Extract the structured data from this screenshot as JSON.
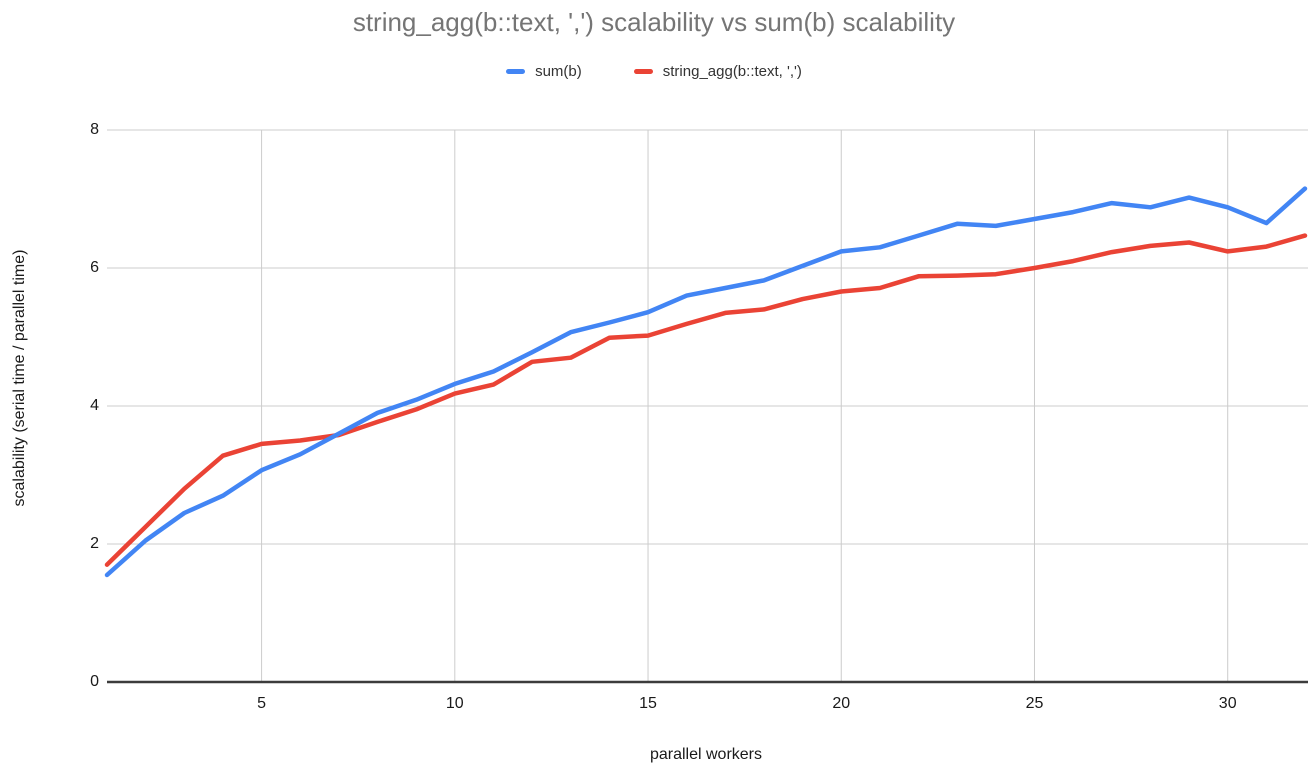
{
  "chart_data": {
    "type": "line",
    "title": "string_agg(b::text, ',') scalability vs sum(b) scalability",
    "xlabel": "parallel workers",
    "ylabel": "scalability (serial time / parallel time)",
    "x": [
      1,
      2,
      3,
      4,
      5,
      6,
      7,
      8,
      9,
      10,
      11,
      12,
      13,
      14,
      15,
      16,
      17,
      18,
      19,
      20,
      21,
      22,
      23,
      24,
      25,
      26,
      27,
      28,
      29,
      30,
      31,
      32
    ],
    "series": [
      {
        "name": "sum(b)",
        "color": "#4285f4",
        "values": [
          1.55,
          2.05,
          2.45,
          2.7,
          3.07,
          3.3,
          3.6,
          3.9,
          4.09,
          4.32,
          4.5,
          4.78,
          5.07,
          5.21,
          5.36,
          5.6,
          5.71,
          5.82,
          6.03,
          6.24,
          6.3,
          6.47,
          6.64,
          6.61,
          6.71,
          6.81,
          6.94,
          6.88,
          7.02,
          6.88,
          6.65,
          7.15
        ]
      },
      {
        "name": "string_agg(b::text, ',')",
        "color": "#ea4335",
        "values": [
          1.7,
          2.25,
          2.8,
          3.28,
          3.45,
          3.5,
          3.58,
          3.77,
          3.95,
          4.18,
          4.31,
          4.64,
          4.7,
          4.99,
          5.02,
          5.19,
          5.35,
          5.4,
          5.55,
          5.66,
          5.71,
          5.88,
          5.89,
          5.91,
          6.0,
          6.1,
          6.23,
          6.32,
          6.37,
          6.24,
          6.31,
          6.47
        ]
      }
    ],
    "xlim": [
      1,
      32
    ],
    "ylim": [
      0,
      8
    ],
    "x_ticks": [
      5,
      10,
      15,
      20,
      25,
      30
    ],
    "y_ticks": [
      0,
      2,
      4,
      6,
      8
    ],
    "grid": true,
    "legend_position": "top",
    "styles": {
      "gridline_color": "#cccccc",
      "axis_line_color": "#3c3c3c",
      "title_color": "#757575",
      "tick_label_color": "#1a1a1a"
    }
  }
}
